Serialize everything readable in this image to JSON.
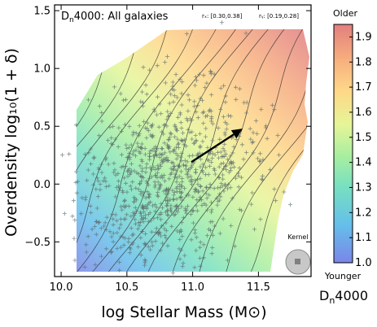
{
  "chart_data": {
    "type": "heatmap",
    "title": "D_n4000:  All galaxies",
    "title_main": "D",
    "title_sub": "n",
    "title_rest": "4000:  All galaxies",
    "xlabel": "log Stellar Mass (M⊙)",
    "ylabel": "Overdensity log₁₀(1 + δ)",
    "xlim": [
      9.95,
      11.9
    ],
    "ylim": [
      -0.8,
      1.55
    ],
    "xticks": [
      10.0,
      10.5,
      11.0,
      11.5
    ],
    "xtick_labels": [
      "10.0",
      "10.5",
      "11.0",
      "11.5"
    ],
    "yticks": [
      -0.5,
      0.0,
      0.5,
      1.0,
      1.5
    ],
    "ytick_labels": [
      "−0.5",
      "0.0",
      "0.5",
      "1.0",
      "1.5"
    ],
    "correlations": {
      "rx": "rₓ: [0.30,0.38]",
      "ry": "rᵧ: [0.19,0.28]"
    },
    "arrow": {
      "x_start": 10.99,
      "y_start": 0.19,
      "x_end": 11.38,
      "y_end": 0.48
    },
    "kernel_label": "Kernel",
    "colorbar": {
      "label": "D_n4000",
      "label_main": "D",
      "label_sub": "n",
      "label_rest": "4000",
      "range": [
        1.0,
        1.95
      ],
      "ticks": [
        1.0,
        1.1,
        1.2,
        1.3,
        1.4,
        1.5,
        1.6,
        1.7,
        1.8,
        1.9
      ],
      "tick_labels": [
        "1.0",
        "1.1",
        "1.2",
        "1.3",
        "1.4",
        "1.5",
        "1.6",
        "1.7",
        "1.8",
        "1.9"
      ],
      "top_label": "Older",
      "bottom_label": "Younger"
    }
  }
}
